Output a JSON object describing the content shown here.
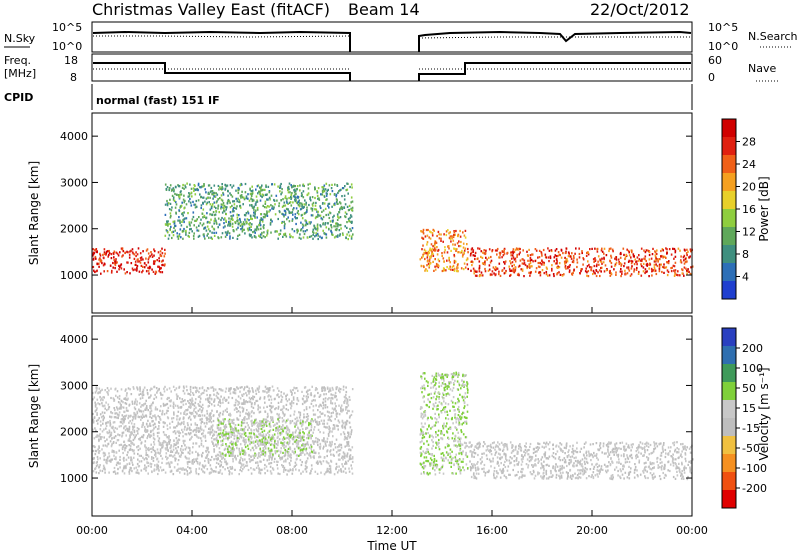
{
  "header": {
    "station": "Christmas Valley East (fitACF)",
    "beam": "Beam 14",
    "date": "22/Oct/2012"
  },
  "noise_panel": {
    "left_label": "N.Sky",
    "left_ticks": [
      "10^5",
      "10^0"
    ],
    "right_ticks": [
      "10^5",
      "10^0"
    ],
    "right_label": "N.Search"
  },
  "freq_panel": {
    "left_label_1": "Freq.",
    "left_label_2": "[MHz]",
    "left_ticks": [
      "18",
      "8"
    ],
    "right_ticks": [
      "60",
      "0"
    ],
    "right_label": "Nave"
  },
  "cpid_panel": {
    "label": "CPID",
    "mode_text": "normal (fast) 151 IF"
  },
  "colors": {
    "power_scale": [
      "#1f3fcf",
      "#2d6fb7",
      "#3f8f7f",
      "#5fa85a",
      "#8fce3f",
      "#e8d02a",
      "#f5a020",
      "#f06018",
      "#e02010",
      "#d00000"
    ],
    "velocity_scale": [
      "#e00000",
      "#f05010",
      "#f59020",
      "#f0c040",
      "#bebebe",
      "#c8c8c8",
      "#7fd03a",
      "#3f9a5a",
      "#2f6fb0",
      "#2a40c0"
    ]
  },
  "chart_data": [
    {
      "type": "heatmap",
      "panel": "power",
      "ylabel": "Slant Range [km]",
      "y_ticks": [
        "1000",
        "2000",
        "3000",
        "4000"
      ],
      "ylim": [
        180,
        4500
      ],
      "xlim": [
        0,
        24
      ],
      "colorbar_label": "Power [dB]",
      "colorbar_ticks": [
        "4",
        "8",
        "12",
        "16",
        "20",
        "24",
        "28"
      ],
      "colorbar_range": [
        0,
        32
      ],
      "data_gap_hours": [
        10.5,
        13.0
      ],
      "bands": [
        {
          "t_start": 0.0,
          "t_end": 2.9,
          "range_start": 1050,
          "range_end": 1600,
          "power_db": 28
        },
        {
          "t_start": 2.9,
          "t_end": 10.4,
          "range_start": 1800,
          "range_end": 3000,
          "power_db": 10
        },
        {
          "t_start": 13.1,
          "t_end": 15.0,
          "range_start": 1100,
          "range_end": 2000,
          "power_db": 22
        },
        {
          "t_start": 15.0,
          "t_end": 24.0,
          "range_start": 1000,
          "range_end": 1600,
          "power_db": 26
        }
      ]
    },
    {
      "type": "heatmap",
      "panel": "velocity",
      "ylabel": "Slant Range [km]",
      "y_ticks": [
        "1000",
        "2000",
        "3000",
        "4000"
      ],
      "ylim": [
        180,
        4500
      ],
      "xlim": [
        0,
        24
      ],
      "xlabel": "Time UT",
      "x_ticks": [
        "00:00",
        "04:00",
        "08:00",
        "12:00",
        "16:00",
        "20:00",
        "00:00"
      ],
      "colorbar_label": "Velocity [m s⁻¹]",
      "colorbar_ticks": [
        "200",
        "100",
        "50",
        "15",
        "-15",
        "-50",
        "-100",
        "-200"
      ],
      "colorbar_range": [
        -250,
        250
      ],
      "data_gap_hours": [
        10.5,
        13.0
      ],
      "bands": [
        {
          "t_start": 0.0,
          "t_end": 10.4,
          "range_start": 1100,
          "range_end": 3000,
          "velocity_ms": 0
        },
        {
          "t_start": 5.0,
          "t_end": 8.8,
          "range_start": 1500,
          "range_end": 2300,
          "velocity_ms": 50
        },
        {
          "t_start": 13.1,
          "t_end": 15.0,
          "range_start": 1100,
          "range_end": 3300,
          "velocity_ms": 50
        },
        {
          "t_start": 15.0,
          "t_end": 24.0,
          "range_start": 1000,
          "range_end": 1800,
          "velocity_ms": 0
        }
      ]
    }
  ]
}
